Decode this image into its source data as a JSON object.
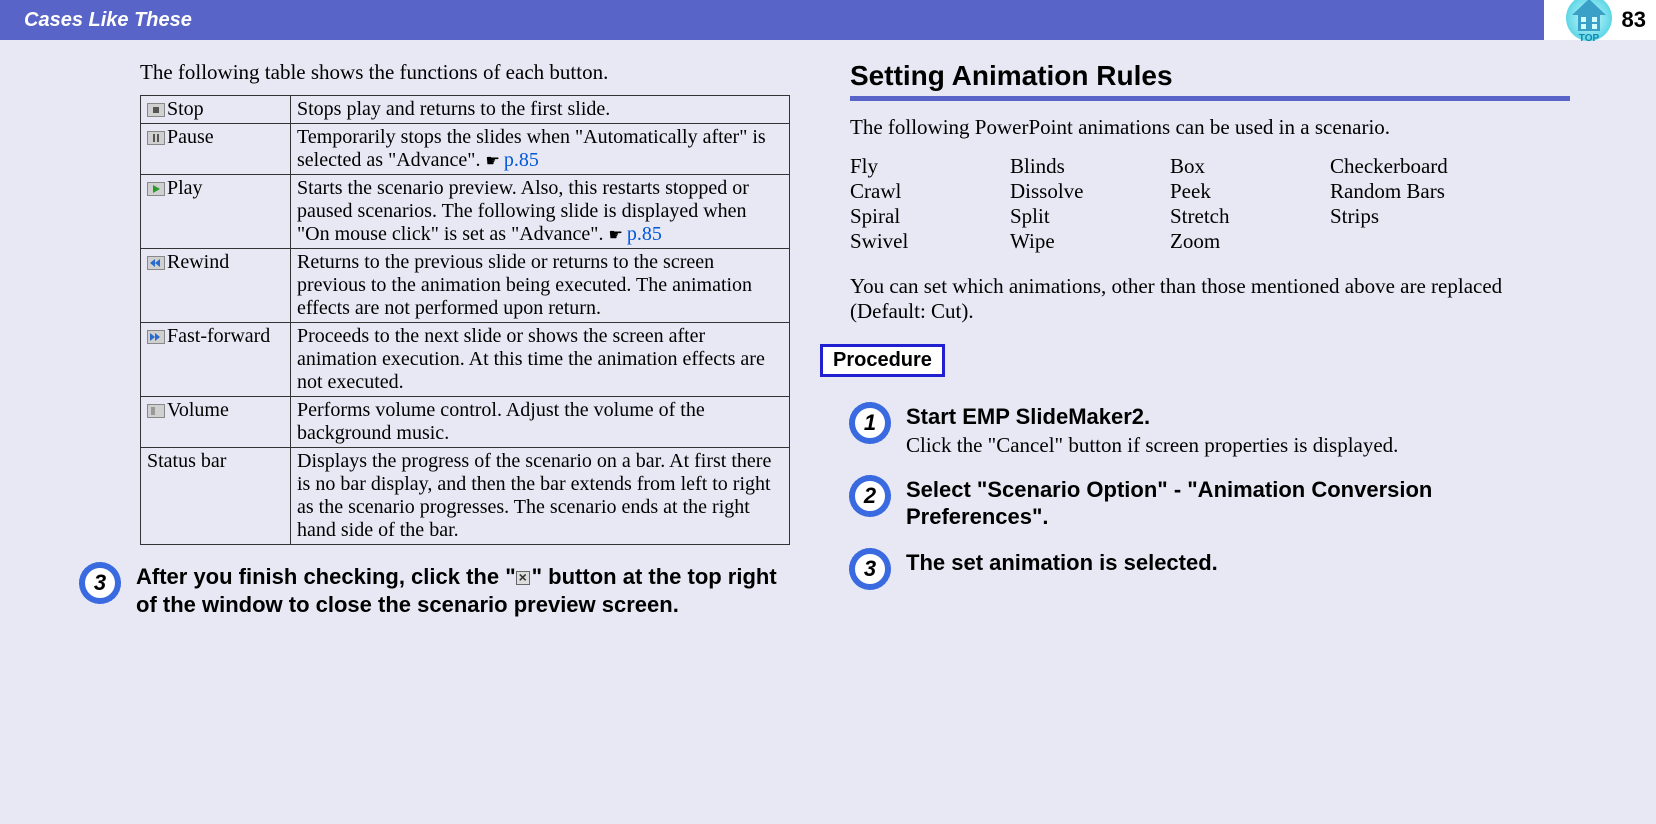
{
  "header": {
    "title": "Cases Like These",
    "page_number": "83",
    "top_label": "TOP"
  },
  "colors": {
    "header_bg": "#5864c8",
    "page_bg": "#e8e8f4",
    "link": "#0058d8",
    "badge_border": "#3a6ae0",
    "proc_border": "#2020d0"
  },
  "left": {
    "intro": "The following table shows the functions of each button.",
    "rows": [
      {
        "icon": "stop",
        "name": "Stop",
        "desc": "Stops play and returns to the first slide."
      },
      {
        "icon": "pause",
        "name": "Pause",
        "desc": "Temporarily stops the slides when \"Automatically after\" is selected as \"Advance\". ",
        "xref": "p.85"
      },
      {
        "icon": "play",
        "name": "Play",
        "desc": "Starts the scenario preview. Also, this restarts stopped or paused scenarios. The following slide is displayed when \"On mouse click\" is set as \"Advance\". ",
        "xref": "p.85"
      },
      {
        "icon": "rewind",
        "name": "Rewind",
        "desc": "Returns to the previous slide or returns to the screen previous to the animation being executed. The animation effects are not performed upon return."
      },
      {
        "icon": "ff",
        "name": "Fast-forward",
        "desc": "Proceeds to the next slide or shows the screen after animation execution. At this time the animation effects are not executed."
      },
      {
        "icon": "vol",
        "name": "Volume",
        "desc": "Performs volume control. Adjust the volume of the background music."
      },
      {
        "icon": "",
        "name": "Status bar",
        "desc": "Displays the progress of the scenario on a bar. At first there is no bar display, and then the bar extends from left to right as the scenario progresses. The scenario ends at the right hand side of the bar."
      }
    ],
    "step": {
      "num": "3",
      "title_a": "After you finish checking, click the \"",
      "title_b": "\" button at the top right of the window to close the scenario preview screen."
    }
  },
  "right": {
    "heading": "Setting Animation Rules",
    "intro": "The following PowerPoint animations can be used in a scenario.",
    "anims": [
      "Fly",
      "Blinds",
      "Box",
      "Checkerboard",
      "Crawl",
      "Dissolve",
      "Peek",
      "Random Bars",
      "Spiral",
      "Split",
      "Stretch",
      "Strips",
      "Swivel",
      "Wipe",
      "Zoom",
      ""
    ],
    "note": "You can set which animations, other than those mentioned above are replaced (Default: Cut).",
    "procedure_label": "Procedure",
    "steps": [
      {
        "num": "1",
        "title": "Start EMP SlideMaker2.",
        "body": "Click the \"Cancel\" button if screen properties is displayed."
      },
      {
        "num": "2",
        "title": "Select \"Scenario Option\" - \"Animation Conversion Preferences\".",
        "body": ""
      },
      {
        "num": "3",
        "title": "The set animation is selected.",
        "body": ""
      }
    ]
  }
}
